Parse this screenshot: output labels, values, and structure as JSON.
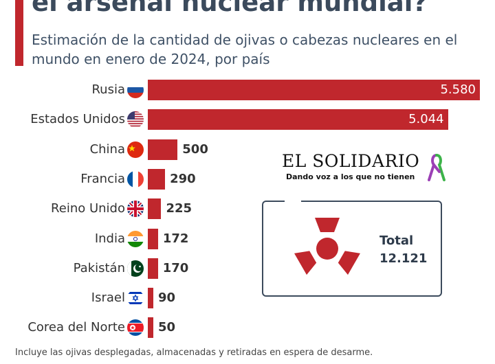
{
  "header": {
    "title": "el arsenal nuclear mundial?",
    "subtitle": "Estimación de la cantidad de ojivas o cabezas nucleares en el mundo en enero de 2024, por país"
  },
  "chart_data": {
    "type": "bar",
    "orientation": "horizontal",
    "categories": [
      "Rusia",
      "Estados Unidos",
      "China",
      "Francia",
      "Reino Unido",
      "India",
      "Pakistán",
      "Israel",
      "Corea del Norte"
    ],
    "values": [
      5580,
      5044,
      500,
      290,
      225,
      172,
      170,
      90,
      50
    ],
    "value_labels": [
      "5.580",
      "5.044",
      "500",
      "290",
      "225",
      "172",
      "170",
      "90",
      "50"
    ],
    "flags": [
      "russia-flag-icon",
      "usa-flag-icon",
      "china-flag-icon",
      "france-flag-icon",
      "uk-flag-icon",
      "india-flag-icon",
      "pakistan-flag-icon",
      "israel-flag-icon",
      "north-korea-flag-icon"
    ],
    "bar_color": "#c0272d",
    "xlim": [
      0,
      5580
    ],
    "grid": false
  },
  "brand": {
    "name": "EL SOLIDARIO",
    "tagline": "Dando voz a los que no tienen",
    "icon": "awareness-ribbon-icon"
  },
  "total": {
    "label": "Total",
    "value": "12.121",
    "icon": "radiation-icon"
  },
  "footnote": "Incluye las ojivas desplegadas, almacenadas y retiradas en espera de desarme.",
  "colors": {
    "accent": "#c0272d",
    "title": "#3b4a5c"
  }
}
